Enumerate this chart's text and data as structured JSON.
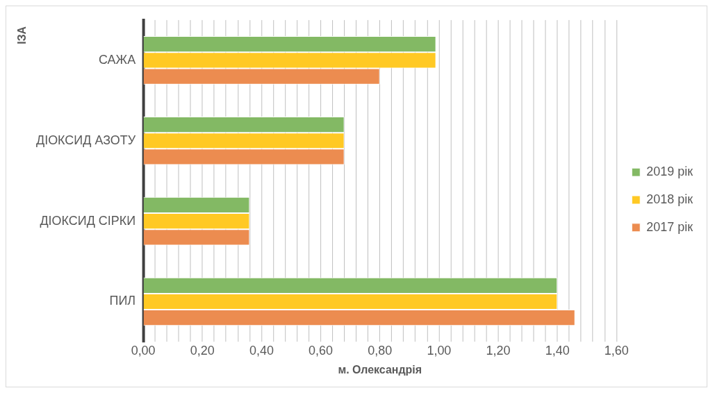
{
  "chart_data": {
    "type": "bar",
    "orientation": "horizontal",
    "xlabel": "м. Олександрія",
    "ylabel": "ІЗА",
    "categories": [
      "САЖА",
      "ДІОКСИД АЗОТУ",
      "ДІОКСИД СІРКИ",
      "ПИЛ"
    ],
    "series": [
      {
        "name": "2019 рік",
        "color": "#83b964",
        "values": [
          0.99,
          0.68,
          0.36,
          1.4
        ]
      },
      {
        "name": "2018 рік",
        "color": "#ffc924",
        "values": [
          0.99,
          0.68,
          0.36,
          1.4
        ]
      },
      {
        "name": "2017 рік",
        "color": "#ec8c50",
        "values": [
          0.8,
          0.68,
          0.36,
          1.46
        ]
      }
    ],
    "xlim": [
      0,
      1.6
    ],
    "xticks": [
      {
        "value": 0,
        "label": "0,00"
      },
      {
        "value": 0.04,
        "label": null
      },
      {
        "value": 0.08,
        "label": null
      },
      {
        "value": 0.12,
        "label": null
      },
      {
        "value": 0.16,
        "label": null
      },
      {
        "value": 0.2,
        "label": "0,20"
      },
      {
        "value": 0.24,
        "label": null
      },
      {
        "value": 0.28,
        "label": null
      },
      {
        "value": 0.32,
        "label": null
      },
      {
        "value": 0.36,
        "label": null
      },
      {
        "value": 0.4,
        "label": "0,40"
      },
      {
        "value": 0.44,
        "label": null
      },
      {
        "value": 0.48,
        "label": null
      },
      {
        "value": 0.52,
        "label": null
      },
      {
        "value": 0.56,
        "label": null
      },
      {
        "value": 0.6,
        "label": "0,60"
      },
      {
        "value": 0.64,
        "label": null
      },
      {
        "value": 0.68,
        "label": null
      },
      {
        "value": 0.72,
        "label": null
      },
      {
        "value": 0.76,
        "label": null
      },
      {
        "value": 0.8,
        "label": "0,80"
      },
      {
        "value": 0.84,
        "label": null
      },
      {
        "value": 0.88,
        "label": null
      },
      {
        "value": 0.92,
        "label": null
      },
      {
        "value": 0.96,
        "label": null
      },
      {
        "value": 1.0,
        "label": "1,00"
      },
      {
        "value": 1.04,
        "label": null
      },
      {
        "value": 1.08,
        "label": null
      },
      {
        "value": 1.12,
        "label": null
      },
      {
        "value": 1.16,
        "label": null
      },
      {
        "value": 1.2,
        "label": "1,20"
      },
      {
        "value": 1.24,
        "label": null
      },
      {
        "value": 1.28,
        "label": null
      },
      {
        "value": 1.32,
        "label": null
      },
      {
        "value": 1.36,
        "label": null
      },
      {
        "value": 1.4,
        "label": "1,40"
      },
      {
        "value": 1.44,
        "label": null
      },
      {
        "value": 1.48,
        "label": null
      },
      {
        "value": 1.52,
        "label": null
      },
      {
        "value": 1.56,
        "label": null
      },
      {
        "value": 1.6,
        "label": "1,60"
      }
    ],
    "grid": "x",
    "legend": "right"
  }
}
